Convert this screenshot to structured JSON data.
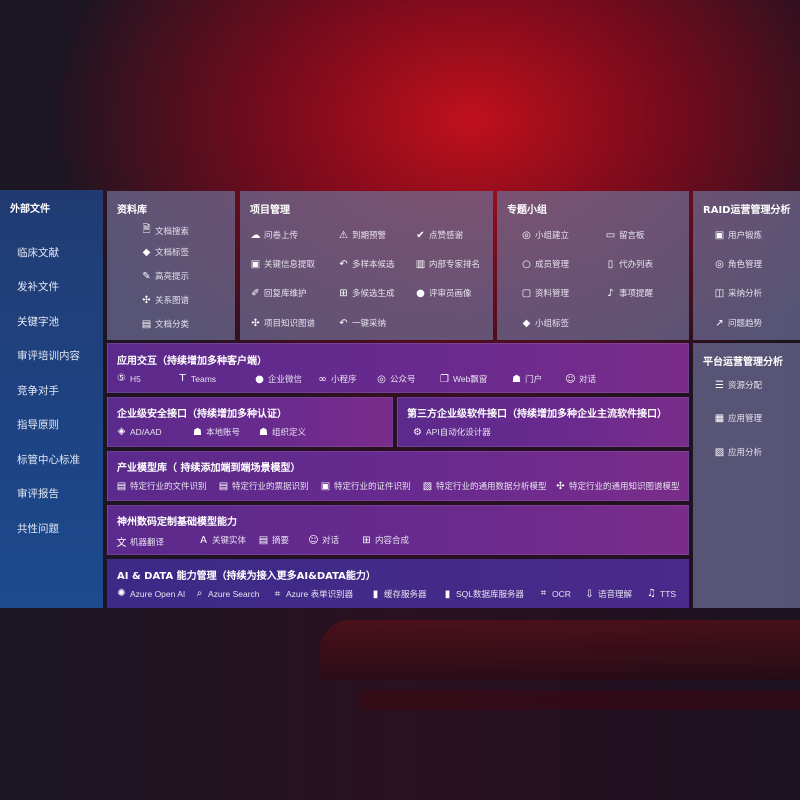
{
  "sidebar": {
    "title": "外部文件",
    "items": [
      "临床文献",
      "发补文件",
      "关键字池",
      "审评培训内容",
      "竞争对手",
      "指导原则",
      "标管中心标准",
      "审评报告",
      "共性问题"
    ]
  },
  "library": {
    "title": "资料库",
    "items": [
      {
        "icon": "doc-search-icon",
        "label": "文档搜索"
      },
      {
        "icon": "tag-icon",
        "label": "文档标签"
      },
      {
        "icon": "pen-icon",
        "label": "高亮提示"
      },
      {
        "icon": "graph-icon",
        "label": "关系图谱"
      },
      {
        "icon": "doc-category-icon",
        "label": "文档分类"
      }
    ]
  },
  "project": {
    "title": "项目管理",
    "items": [
      {
        "icon": "cloud-upload-icon",
        "label": "问卷上传"
      },
      {
        "icon": "alarm-icon",
        "label": "到期预警"
      },
      {
        "icon": "thumbs-up-icon",
        "label": "点赞感谢"
      },
      {
        "icon": "info-extract-icon",
        "label": "关键信息提取"
      },
      {
        "icon": "reply-icon",
        "label": "多样本候选"
      },
      {
        "icon": "ranking-icon",
        "label": "内部专家排名"
      },
      {
        "icon": "edit-icon",
        "label": "回复库维护"
      },
      {
        "icon": "puzzle-icon",
        "label": "多候选生成"
      },
      {
        "icon": "user-icon",
        "label": "评审员画像"
      },
      {
        "icon": "knowledge-graph-icon",
        "label": "项目知识图谱"
      },
      {
        "icon": "reply-icon",
        "label": "一键采纳"
      }
    ]
  },
  "group": {
    "title": "专题小组",
    "items": [
      {
        "icon": "group-icon",
        "label": "小组建立"
      },
      {
        "icon": "bbs-icon",
        "label": "留言板"
      },
      {
        "icon": "member-icon",
        "label": "成员管理"
      },
      {
        "icon": "clipboard-icon",
        "label": "代办列表"
      },
      {
        "icon": "folder-icon",
        "label": "资料管理"
      },
      {
        "icon": "bell-icon",
        "label": "事项提醒"
      },
      {
        "icon": "tag-icon",
        "label": "小组标签"
      }
    ]
  },
  "raid": {
    "title": "RAID运营管理分析",
    "items": [
      {
        "icon": "id-card-icon",
        "label": "用户锻炼"
      },
      {
        "icon": "users-icon",
        "label": "角色管理"
      },
      {
        "icon": "qa-icon",
        "label": "采纳分析"
      },
      {
        "icon": "trend-icon",
        "label": "问题趋势"
      }
    ]
  },
  "platform": {
    "title": "平台运营管理分析",
    "items": [
      {
        "icon": "checklist-icon",
        "label": "资源分配"
      },
      {
        "icon": "apps-icon",
        "label": "应用管理"
      },
      {
        "icon": "chart-icon",
        "label": "应用分析"
      }
    ]
  },
  "interaction": {
    "title": "应用交互（持续增加多种客户端）",
    "items": [
      {
        "icon": "html5-icon",
        "label": "H5"
      },
      {
        "icon": "teams-icon",
        "label": "Teams"
      },
      {
        "icon": "wechat-icon",
        "label": "企业微信"
      },
      {
        "icon": "miniprogram-icon",
        "label": "小程序"
      },
      {
        "icon": "users-icon",
        "label": "公众号"
      },
      {
        "icon": "window-icon",
        "label": "Web飘窗"
      },
      {
        "icon": "portal-icon",
        "label": "门户"
      },
      {
        "icon": "chat-icon",
        "label": "对话"
      }
    ]
  },
  "security": {
    "title": "企业级安全接口（持续增加多种认证）",
    "items": [
      {
        "icon": "ad-icon",
        "label": "AD/AAD"
      },
      {
        "icon": "local-account-icon",
        "label": "本地账号"
      },
      {
        "icon": "org-icon",
        "label": "组织定义"
      }
    ]
  },
  "thirdparty": {
    "title": "第三方企业级软件接口（持续增加多种企业主流软件接口）",
    "items": [
      {
        "icon": "api-gear-icon",
        "label": "API自动化设计器"
      }
    ]
  },
  "industry": {
    "title": "产业模型库（ 持续添加端到端场景模型）",
    "items": [
      {
        "icon": "doc-icon",
        "label": "特定行业的文件识别"
      },
      {
        "icon": "receipt-icon",
        "label": "特定行业的票据识别"
      },
      {
        "icon": "id-card-icon",
        "label": "特定行业的证件识别"
      },
      {
        "icon": "data-analysis-icon",
        "label": "特定行业的通用数据分析模型"
      },
      {
        "icon": "knowledge-graph-icon",
        "label": "特定行业的通用知识图谱模型"
      }
    ]
  },
  "base": {
    "title": "神州数码定制基础模型能力",
    "items": [
      {
        "icon": "translate-icon",
        "label": "机器翻译"
      },
      {
        "icon": "entity-icon",
        "label": "关键实体"
      },
      {
        "icon": "summary-icon",
        "label": "摘要"
      },
      {
        "icon": "chat-icon",
        "label": "对话"
      },
      {
        "icon": "compose-icon",
        "label": "内容合成"
      }
    ]
  },
  "aidata": {
    "title": "AI & DATA 能力管理（持续为接入更多AI&DATA能力）",
    "items": [
      {
        "icon": "openai-icon",
        "label": "Azure Open AI"
      },
      {
        "icon": "search-icon",
        "label": "Azure Search"
      },
      {
        "icon": "form-recognizer-icon",
        "label": "Azure 表单识别器"
      },
      {
        "icon": "cache-icon",
        "label": "缓存服务器"
      },
      {
        "icon": "sql-icon",
        "label": "SQL数据库服务器"
      },
      {
        "icon": "ocr-icon",
        "label": "OCR"
      },
      {
        "icon": "speech-icon",
        "label": "语音理解"
      },
      {
        "icon": "tts-icon",
        "label": "TTS"
      }
    ]
  }
}
